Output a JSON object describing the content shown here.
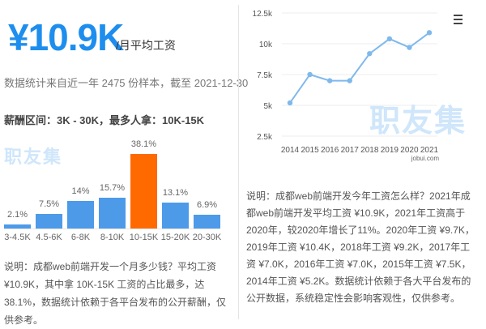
{
  "left": {
    "salary_value": "¥10.9K",
    "salary_unit": "/月平均工资",
    "stat_line": "数据统计来自近一年 2475 份样本，截至 2021-12-30",
    "range_line": "薪酬区间：3K - 30K，最多人拿：10K-15K",
    "watermark": "职友集",
    "description": "说明：成都web前端开发一个月多少钱？平均工资 ¥10.9K，其中拿 10K-15K 工资的占比最多，达 38.1%，数据统计依赖于各平台发布的公开薪酬，仅供参考。"
  },
  "right": {
    "watermark": "职友集",
    "source": "jobui.com",
    "description": "说明：成都web前端开发今年工资怎么样？2021年成都web前端开发平均工资 ¥10.9K，2021年工资高于2020年，较2020年增长了11%。2020年工资 ¥9.7K，2019年工资 ¥10.4K，2018年工资 ¥9.2K，2017年工资 ¥7.0K，2016年工资 ¥7.0K，2015年工资 ¥7.5K，2014年工资 ¥5.2K。数据统计依赖于各大平台发布的公开数据，系统稳定性会影响客观性，仅供参考。",
    "menu_icon": "hamburger-menu-icon"
  },
  "chart_data": [
    {
      "type": "bar",
      "categories": [
        "3-4.5K",
        "4.5-6K",
        "6-8K",
        "8-10K",
        "10-15K",
        "15-20K",
        "20-30K"
      ],
      "values": [
        2.1,
        7.5,
        14,
        15.7,
        38.1,
        13.1,
        6.9
      ],
      "labels": [
        "2.1%",
        "7.5%",
        "14%",
        "15.7%",
        "38.1%",
        "13.1%",
        "6.9%"
      ],
      "colors": {
        "normal": "#4d9ae9",
        "highlight": "#ff6a00"
      },
      "highlight_index": 4,
      "grid": false
    },
    {
      "type": "line",
      "x": [
        2014,
        2015,
        2016,
        2017,
        2018,
        2019,
        2020,
        2021
      ],
      "y": [
        5.2,
        7.5,
        7.0,
        7.0,
        9.2,
        10.4,
        9.7,
        10.9
      ],
      "yticks": [
        "2.5k",
        "5k",
        "7.5k",
        "10k",
        "12.5k"
      ],
      "ylim": [
        2.5,
        12.5
      ],
      "color": "#7fb9ec",
      "grid": true
    }
  ]
}
